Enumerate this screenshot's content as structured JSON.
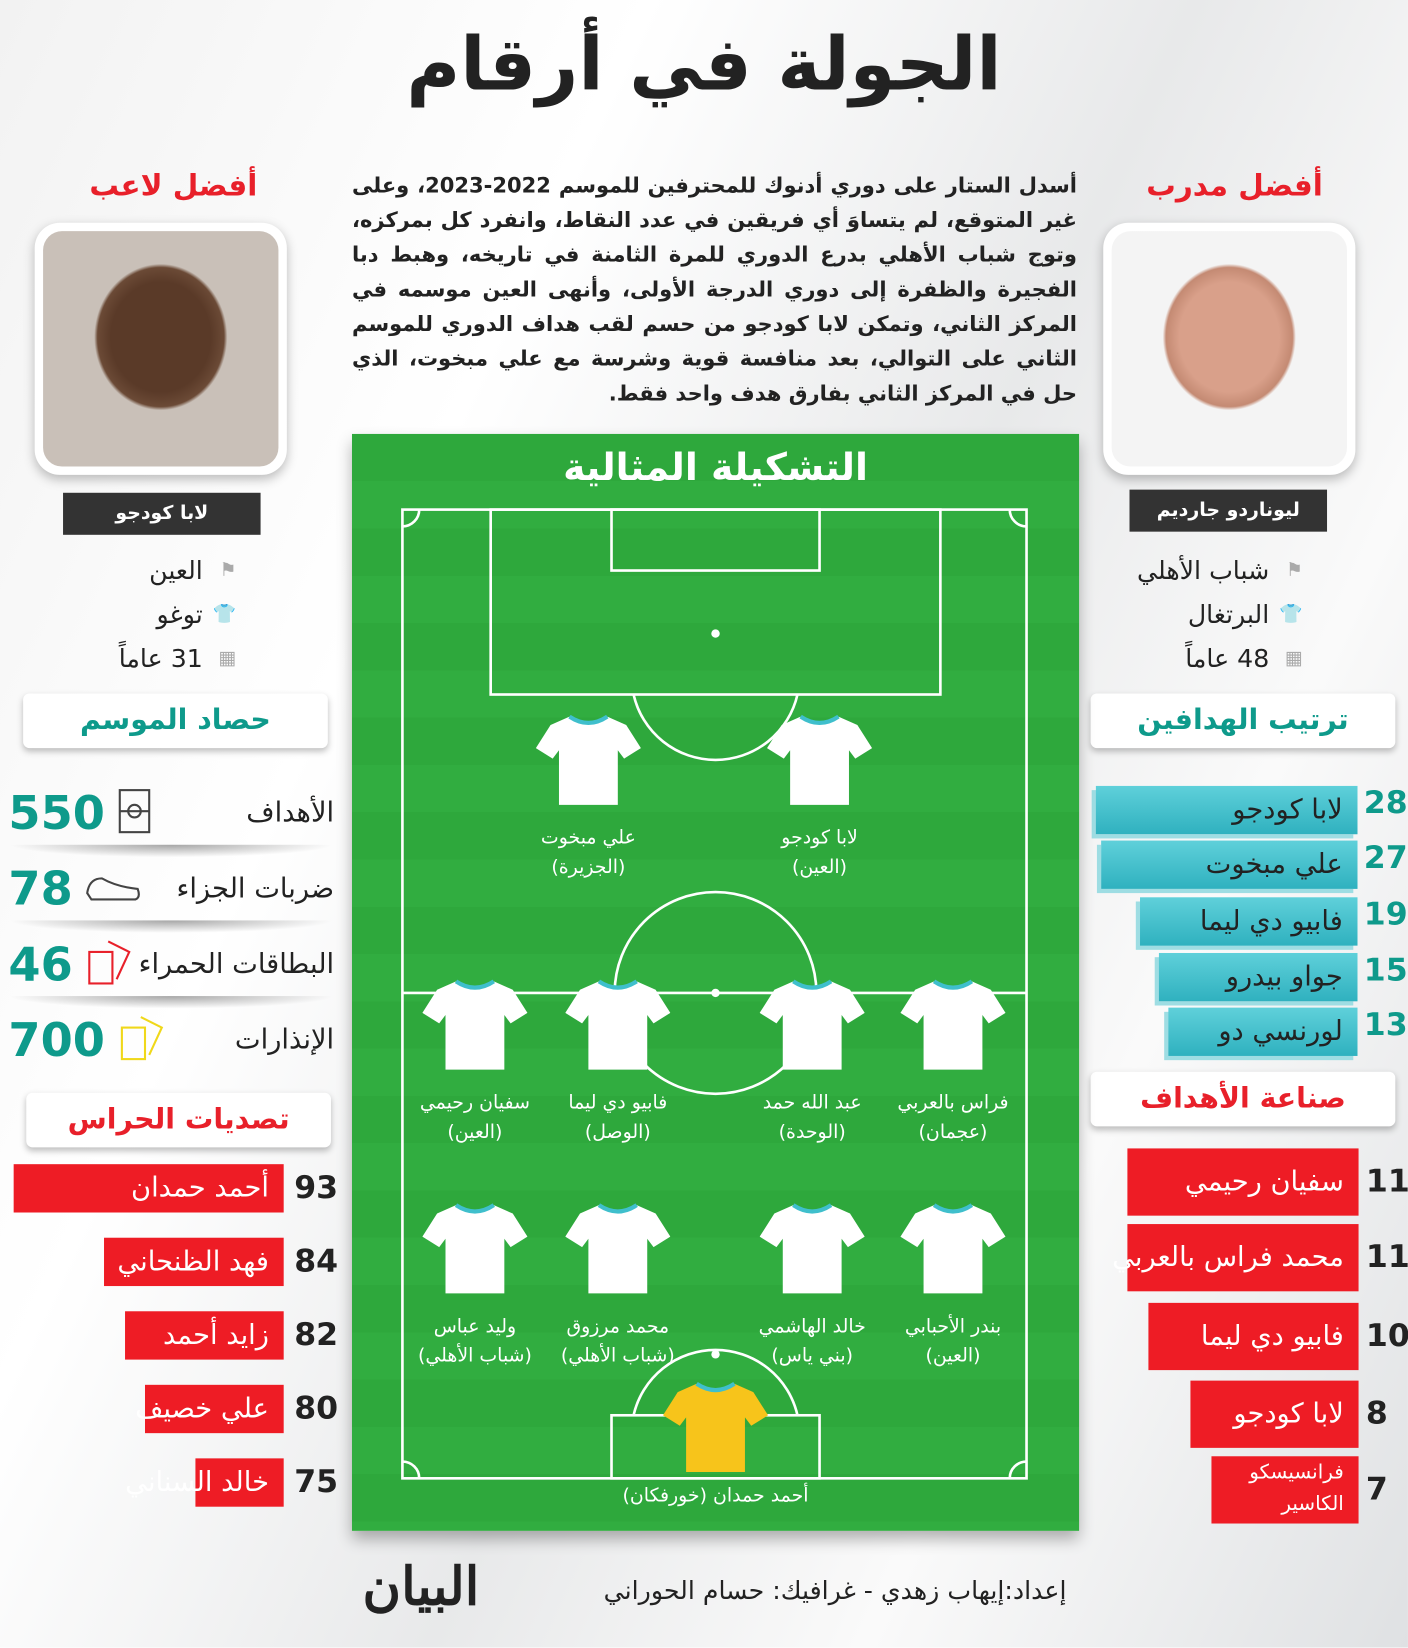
{
  "title": "الجولة في أرقام",
  "intro": "أسدل الستار على دوري أدنوك للمحترفين للموسم 2022-2023، وعلى غير المتوقع، لم يتساوَ أي فريقين في عدد النقاط، وانفرد كل بمركزه، وتوج شباب الأهلي بدرع الدوري للمرة الثامنة في تاريخه، وهبط دبا الفجيرة والظفرة إلى دوري الدرجة الأولى، وأنهى العين موسمه في المركز الثاني، وتمكن لابا كودجو من حسم لقب هداف الدوري للموسم الثاني على التوالي، بعد منافسة قوية وشرسة مع علي مبخوت، الذي حل في المركز الثاني بفارق هدف واحد فقط.",
  "best_coach": {
    "heading": "أفضل مدرب",
    "name": "ليوناردو جارديم",
    "club": "شباب الأهلي",
    "nationality": "البرتغال",
    "age": "48 عاماً"
  },
  "best_player": {
    "heading": "أفضل لاعب",
    "name": "لابا كودجو",
    "club": "العين",
    "nationality": "توغو",
    "age": "31 عاماً"
  },
  "season": {
    "heading": "حصاد الموسم",
    "stats": [
      {
        "label": "الأهداف",
        "value": "550",
        "icon": "pitch-icon"
      },
      {
        "label": "ضربات الجزاء",
        "value": "78",
        "icon": "boot-icon"
      },
      {
        "label": "البطاقات الحمراء",
        "value": "46",
        "icon": "red-card-icon"
      },
      {
        "label": "الإنذارات",
        "value": "700",
        "icon": "yellow-card-icon"
      }
    ]
  },
  "saves": {
    "heading": "تصديات الحراس",
    "items": [
      {
        "name": "أحمد حمدان",
        "value": 93
      },
      {
        "name": "فهد الظنحاني",
        "value": 84
      },
      {
        "name": "زايد أحمد",
        "value": 82
      },
      {
        "name": "علي خصيف",
        "value": 80
      },
      {
        "name": "خالد السناني",
        "value": 75
      }
    ]
  },
  "scorers": {
    "heading": "ترتيب الهدافين",
    "items": [
      {
        "name": "لابا كودجو",
        "value": 28
      },
      {
        "name": "علي مبخوت",
        "value": 27
      },
      {
        "name": "فابيو دي ليما",
        "value": 19
      },
      {
        "name": "جواو بيدرو",
        "value": 15
      },
      {
        "name": "لورنسي دو",
        "value": 13
      }
    ]
  },
  "assists": {
    "heading": "صناعة الأهداف",
    "items": [
      {
        "name": "سفيان رحيمي",
        "value": 11
      },
      {
        "name": "محمد فراس بالعربي",
        "value": 11
      },
      {
        "name": "فابيو دي ليما",
        "value": 10
      },
      {
        "name": "لابا كودجو",
        "value": 8
      },
      {
        "name": "فرانسيسكو الكاسير",
        "value": 7
      }
    ]
  },
  "lineup": {
    "title": "التشكيلة المثالية",
    "players": [
      {
        "name": "علي مبخوت",
        "club": "(الجزيرة)"
      },
      {
        "name": "لابا كودجو",
        "club": "(العين)"
      },
      {
        "name": "سفيان رحيمي",
        "club": "(العين)"
      },
      {
        "name": "فابيو دي ليما",
        "club": "(الوصل)"
      },
      {
        "name": "عبد الله حمد",
        "club": "(الوحدة)"
      },
      {
        "name": "فراس بالعربي",
        "club": "(عجمان)"
      },
      {
        "name": "وليد عباس",
        "club": "(شباب الأهلي)"
      },
      {
        "name": "محمد مرزوق",
        "club": "(شباب الأهلي)"
      },
      {
        "name": "خالد الهاشمي",
        "club": "(بني ياس)"
      },
      {
        "name": "بندر الأحبابي",
        "club": "(العين)"
      }
    ],
    "goalkeeper": "أحمد حمدان (خورفكان)"
  },
  "colors": {
    "teal": "#0e9a8b",
    "bar_teal": "#3fbfcc",
    "red": "#ee1c25",
    "pitch": "#2ea83c",
    "gk_shirt": "#f7c41b"
  },
  "footer": {
    "credits": "إعداد:إيهاب زهدي - غرافيك: حسام الحوراني",
    "logo": "البيان"
  }
}
